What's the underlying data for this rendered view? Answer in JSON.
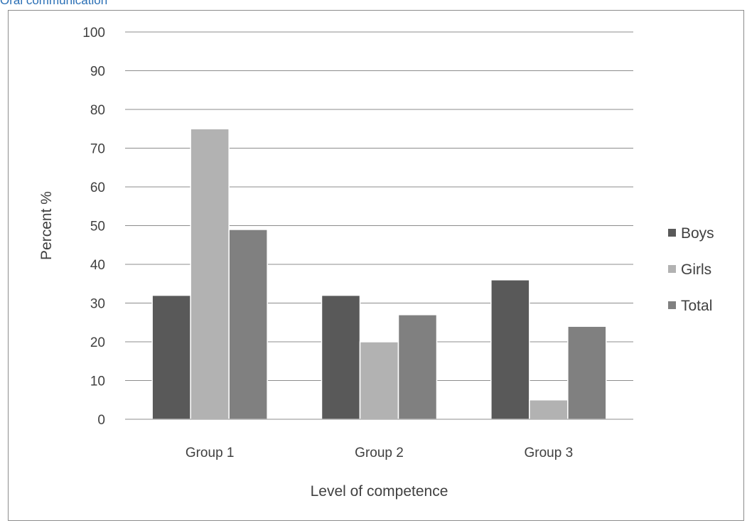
{
  "caption": "Oral communication",
  "chart_data": {
    "type": "bar",
    "title": "",
    "xlabel": "Level of competence",
    "ylabel": "Percent %",
    "ylim": [
      0,
      100
    ],
    "yticks": [
      0,
      10,
      20,
      30,
      40,
      50,
      60,
      70,
      80,
      90,
      100
    ],
    "categories": [
      "Group 1",
      "Group 2",
      "Group 3"
    ],
    "series": [
      {
        "name": "Boys",
        "values": [
          32,
          32,
          36
        ],
        "color": "#595959"
      },
      {
        "name": "Girls",
        "values": [
          75,
          20,
          5
        ],
        "color": "#b2b2b2"
      },
      {
        "name": "Total",
        "values": [
          49,
          27,
          24
        ],
        "color": "#808080"
      }
    ],
    "grid": true,
    "legend": "right"
  }
}
